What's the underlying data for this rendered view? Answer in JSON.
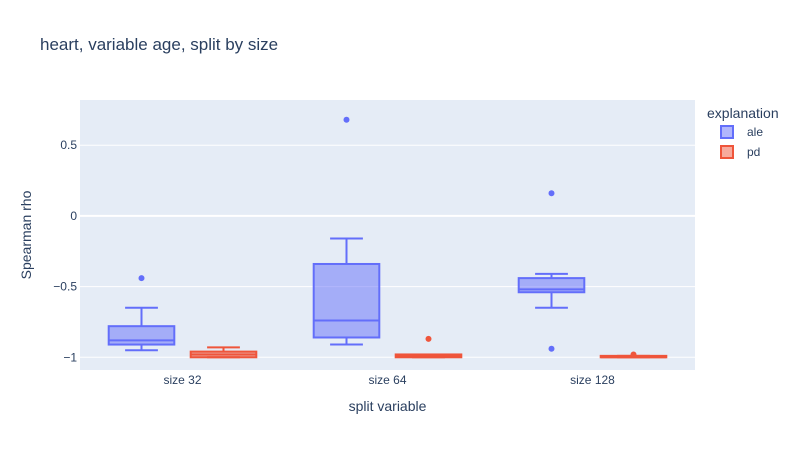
{
  "chart_data": {
    "type": "box",
    "title": "heart, variable age, split by size",
    "xlabel": "split variable",
    "ylabel": "Spearman rho",
    "categories": [
      "size 32",
      "size 64",
      "size 128"
    ],
    "ylim": [
      -1.09,
      0.82
    ],
    "yticks": [
      0.5,
      0,
      -0.5,
      -1
    ],
    "ytick_labels": [
      "0.5",
      "0",
      "−0.5",
      "−1"
    ],
    "grid": true,
    "legend": {
      "title": "explanation",
      "position": "top-right"
    },
    "colors": {
      "ale": "#636efa",
      "pd": "#ef553b",
      "plot_bg": "#e5ecf6"
    },
    "series": [
      {
        "name": "ale",
        "boxes": [
          {
            "category": "size 32",
            "lowerfence": -0.95,
            "q1": -0.91,
            "median": -0.88,
            "q3": -0.78,
            "upperfence": -0.65,
            "outliers": [
              -0.44
            ]
          },
          {
            "category": "size 64",
            "lowerfence": -0.91,
            "q1": -0.86,
            "median": -0.74,
            "q3": -0.34,
            "upperfence": -0.16,
            "outliers": [
              0.68
            ]
          },
          {
            "category": "size 128",
            "lowerfence": -0.65,
            "q1": -0.54,
            "median": -0.52,
            "q3": -0.44,
            "upperfence": -0.41,
            "outliers": [
              0.16,
              -0.94
            ]
          }
        ]
      },
      {
        "name": "pd",
        "boxes": [
          {
            "category": "size 32",
            "lowerfence": -1.0,
            "q1": -1.0,
            "median": -0.98,
            "q3": -0.96,
            "upperfence": -0.93,
            "outliers": []
          },
          {
            "category": "size 64",
            "lowerfence": -1.0,
            "q1": -1.0,
            "median": -0.99,
            "q3": -0.98,
            "upperfence": -0.98,
            "outliers": [
              -0.87
            ]
          },
          {
            "category": "size 128",
            "lowerfence": -1.0,
            "q1": -1.0,
            "median": -1.0,
            "q3": -0.99,
            "upperfence": -0.99,
            "outliers": [
              -0.98
            ]
          }
        ]
      }
    ]
  }
}
